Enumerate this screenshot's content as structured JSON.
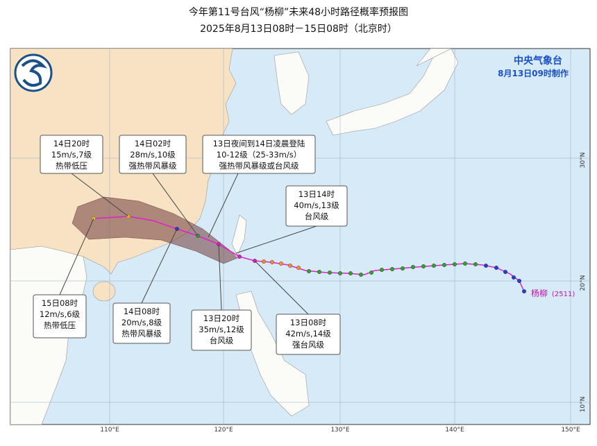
{
  "header": {
    "title": "今年第11号台风“杨柳”未来48小时路径概率预报图",
    "subtitle": "2025年8月13日08时－15日08时（北京时）"
  },
  "agency": {
    "name": "中央气象台",
    "issued": "8月13日09时制作"
  },
  "typhoon": {
    "name": "杨柳",
    "code": "(2511)"
  },
  "callouts": [
    {
      "lines": [
        "14日20时",
        "15m/s,7级",
        "热带低压"
      ]
    },
    {
      "lines": [
        "14日02时",
        "28m/s,10级",
        "强热带风暴级"
      ]
    },
    {
      "lines": [
        "13日夜间到14日凌晨登陆",
        "10-12级（25-33m/s）",
        "强热带风暴级或台风级"
      ]
    },
    {
      "lines": [
        "13日14时",
        "40m/s,13级",
        "台风级"
      ]
    },
    {
      "lines": [
        "15日08时",
        "12m/s,6级",
        "热带低压"
      ]
    },
    {
      "lines": [
        "14日08时",
        "20m/s,8级",
        "热带风暴级"
      ]
    },
    {
      "lines": [
        "13日20时",
        "35m/s,12级",
        "台风级"
      ]
    },
    {
      "lines": [
        "13日08时",
        "42m/s,14级",
        "强台风级"
      ]
    }
  ],
  "axes": {
    "longitudes": [
      "110°E",
      "120°E",
      "130°E",
      "140°E",
      "150°E"
    ],
    "latitudes": [
      "30°N",
      "20°N",
      "10°N"
    ]
  }
}
